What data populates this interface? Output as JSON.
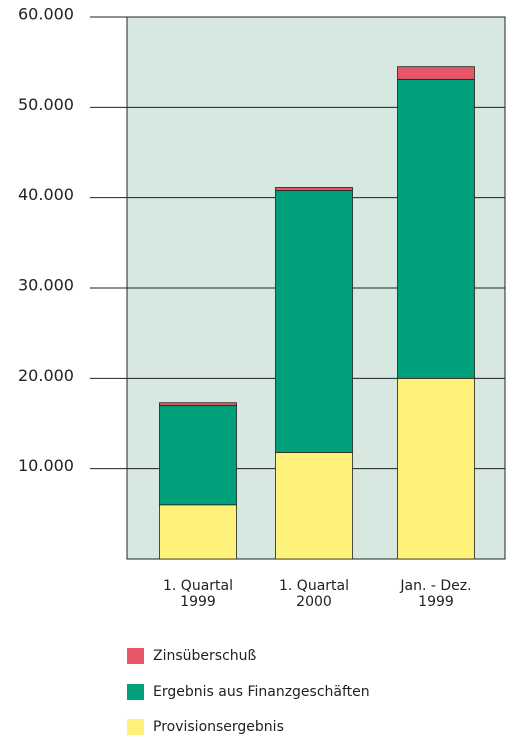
{
  "chart_data": {
    "type": "stacked_bar",
    "categories": [
      "1. Quartal 1999",
      "1. Quartal 2000",
      "Jan. - Dez. 1999"
    ],
    "series": [
      {
        "name": "Provisionsergebnis",
        "color": "#fff27a",
        "values": [
          6000,
          11800,
          20000
        ]
      },
      {
        "name": "Ergebnis aus Finanzgeschäften",
        "color": "#00a07a",
        "values": [
          11000,
          29000,
          33100
        ]
      },
      {
        "name": "Zinsüberschuß",
        "color": "#e8566a",
        "values": [
          300,
          330,
          1400
        ]
      }
    ],
    "ylim": [
      0,
      60000
    ],
    "yticks": [
      {
        "value": 10000,
        "label": "10.000"
      },
      {
        "value": 20000,
        "label": "20.000"
      },
      {
        "value": 30000,
        "label": "30.000"
      },
      {
        "value": 40000,
        "label": "40.000"
      },
      {
        "value": 50000,
        "label": "50.000"
      },
      {
        "value": 60000,
        "label": "60.000"
      }
    ],
    "grid": true,
    "plot_background": "#d6e8e0"
  }
}
